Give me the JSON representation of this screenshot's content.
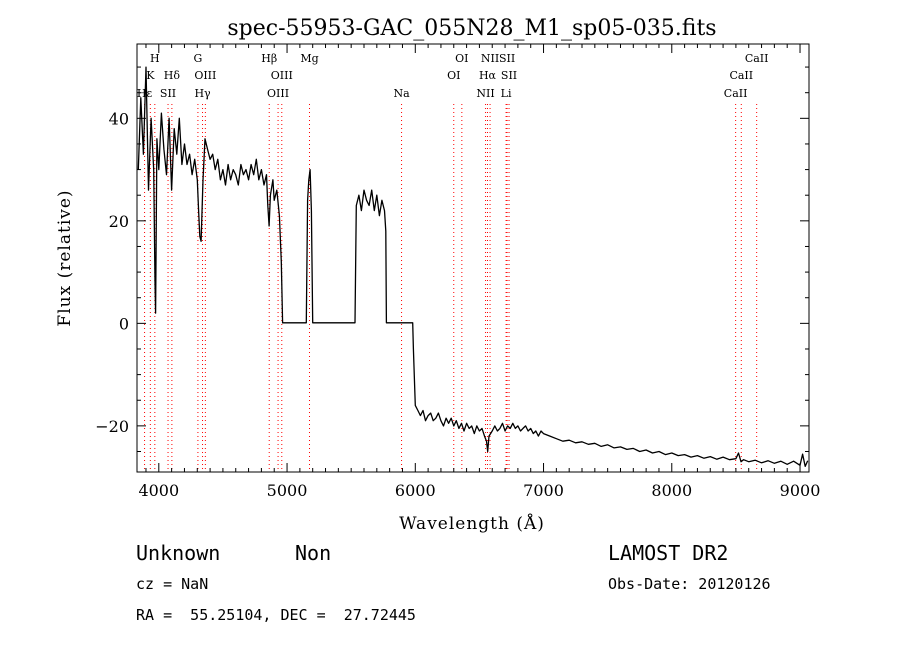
{
  "chart_data": {
    "type": "line",
    "title": "spec-55953-GAC_055N28_M1_sp05-035.fits",
    "xlabel": "Wavelength (Å)",
    "ylabel": "Flux (relative)",
    "xlim": [
      3830,
      9070
    ],
    "ylim": [
      -29,
      54.5
    ],
    "xticks": [
      {
        "value": 4000,
        "label": "4000"
      },
      {
        "value": 5000,
        "label": "5000"
      },
      {
        "value": 6000,
        "label": "6000"
      },
      {
        "value": 7000,
        "label": "7000"
      },
      {
        "value": 8000,
        "label": "8000"
      },
      {
        "value": 9000,
        "label": "9000"
      }
    ],
    "yticks": [
      {
        "value": -20,
        "label": "−20"
      },
      {
        "value": 0,
        "label": "0"
      },
      {
        "value": 20,
        "label": "20"
      },
      {
        "value": 40,
        "label": "40"
      }
    ],
    "line_color": "#000000",
    "marker_color": "#ff0000",
    "markers": [
      {
        "label": "H",
        "x": 3969,
        "row": 0
      },
      {
        "label": "K",
        "x": 3934,
        "row": 1
      },
      {
        "label": "Hε",
        "x": 3889,
        "row": 2
      },
      {
        "label": "Hδ",
        "x": 4102,
        "row": 1
      },
      {
        "label": "SII",
        "x": 4072,
        "row": 2
      },
      {
        "label": "G",
        "x": 4305,
        "row": 0
      },
      {
        "label": "OIII",
        "x": 4363,
        "row": 1
      },
      {
        "label": "Hγ",
        "x": 4341,
        "row": 2
      },
      {
        "label": "Hβ",
        "x": 4861,
        "row": 0
      },
      {
        "label": "OIII",
        "x": 4959,
        "row": 1
      },
      {
        "label": "OIII",
        "x": 4930,
        "row": 2
      },
      {
        "label": "Mg",
        "x": 5175,
        "row": 0
      },
      {
        "label": "Na",
        "x": 5893,
        "row": 2
      },
      {
        "label": "OI",
        "x": 6363,
        "row": 0
      },
      {
        "label": "OI",
        "x": 6300,
        "row": 1
      },
      {
        "label": "NII",
        "x": 6583,
        "row": 0
      },
      {
        "label": "SII",
        "x": 6716,
        "row": 0
      },
      {
        "label": "Hα",
        "x": 6563,
        "row": 1
      },
      {
        "label": "SII",
        "x": 6731,
        "row": 1
      },
      {
        "label": "NII",
        "x": 6548,
        "row": 2
      },
      {
        "label": "Li",
        "x": 6708,
        "row": 2
      },
      {
        "label": "CaII",
        "x": 8662,
        "row": 0
      },
      {
        "label": "CaII",
        "x": 8542,
        "row": 1
      },
      {
        "label": "CaII",
        "x": 8498,
        "row": 2
      }
    ],
    "series": [
      {
        "values": [
          [
            3840,
            30
          ],
          [
            3860,
            44
          ],
          [
            3880,
            33
          ],
          [
            3900,
            50
          ],
          [
            3920,
            26
          ],
          [
            3940,
            40
          ],
          [
            3960,
            30
          ],
          [
            3970,
            8
          ],
          [
            3975,
            2
          ],
          [
            3985,
            36
          ],
          [
            4000,
            30
          ],
          [
            4020,
            41
          ],
          [
            4040,
            34
          ],
          [
            4060,
            29
          ],
          [
            4080,
            40
          ],
          [
            4100,
            26
          ],
          [
            4120,
            38
          ],
          [
            4140,
            33
          ],
          [
            4160,
            40
          ],
          [
            4180,
            31
          ],
          [
            4200,
            35
          ],
          [
            4220,
            31
          ],
          [
            4240,
            33
          ],
          [
            4260,
            29
          ],
          [
            4280,
            32
          ],
          [
            4300,
            28
          ],
          [
            4310,
            22
          ],
          [
            4320,
            17
          ],
          [
            4330,
            16
          ],
          [
            4345,
            28
          ],
          [
            4360,
            36
          ],
          [
            4380,
            34
          ],
          [
            4400,
            32
          ],
          [
            4420,
            33
          ],
          [
            4440,
            30
          ],
          [
            4460,
            32
          ],
          [
            4480,
            28
          ],
          [
            4500,
            30
          ],
          [
            4520,
            27
          ],
          [
            4540,
            31
          ],
          [
            4560,
            28
          ],
          [
            4580,
            30
          ],
          [
            4600,
            29
          ],
          [
            4620,
            27
          ],
          [
            4640,
            31
          ],
          [
            4660,
            29
          ],
          [
            4680,
            30
          ],
          [
            4700,
            28
          ],
          [
            4720,
            31
          ],
          [
            4740,
            29
          ],
          [
            4760,
            32
          ],
          [
            4780,
            28
          ],
          [
            4800,
            30
          ],
          [
            4820,
            27
          ],
          [
            4840,
            29
          ],
          [
            4850,
            23
          ],
          [
            4860,
            19
          ],
          [
            4870,
            25
          ],
          [
            4890,
            28
          ],
          [
            4900,
            24
          ],
          [
            4920,
            26
          ],
          [
            4940,
            21
          ],
          [
            4955,
            12
          ],
          [
            4965,
            0.1
          ],
          [
            5000,
            0.1
          ],
          [
            5050,
            0.1
          ],
          [
            5120,
            0.1
          ],
          [
            5150,
            0.1
          ],
          [
            5160,
            24
          ],
          [
            5170,
            28
          ],
          [
            5180,
            30
          ],
          [
            5190,
            22
          ],
          [
            5200,
            0.1
          ],
          [
            5300,
            0.1
          ],
          [
            5400,
            0.1
          ],
          [
            5500,
            0.1
          ],
          [
            5530,
            0.1
          ],
          [
            5540,
            23
          ],
          [
            5560,
            25
          ],
          [
            5580,
            22
          ],
          [
            5600,
            26
          ],
          [
            5620,
            24
          ],
          [
            5640,
            23
          ],
          [
            5660,
            26
          ],
          [
            5680,
            22
          ],
          [
            5700,
            25
          ],
          [
            5720,
            21
          ],
          [
            5740,
            24
          ],
          [
            5760,
            22
          ],
          [
            5770,
            18
          ],
          [
            5775,
            0.1
          ],
          [
            5800,
            0.1
          ],
          [
            5900,
            0.1
          ],
          [
            5980,
            0.1
          ],
          [
            5985,
            -5
          ],
          [
            5995,
            -12
          ],
          [
            6000,
            -16
          ],
          [
            6020,
            -17
          ],
          [
            6040,
            -18
          ],
          [
            6060,
            -17
          ],
          [
            6080,
            -19
          ],
          [
            6100,
            -18
          ],
          [
            6120,
            -17.5
          ],
          [
            6140,
            -19
          ],
          [
            6160,
            -18.5
          ],
          [
            6180,
            -17.5
          ],
          [
            6200,
            -19
          ],
          [
            6220,
            -20
          ],
          [
            6240,
            -18.5
          ],
          [
            6260,
            -19.5
          ],
          [
            6280,
            -18.5
          ],
          [
            6300,
            -20
          ],
          [
            6320,
            -19
          ],
          [
            6340,
            -20.5
          ],
          [
            6360,
            -19.5
          ],
          [
            6380,
            -21
          ],
          [
            6400,
            -19.5
          ],
          [
            6420,
            -20.5
          ],
          [
            6440,
            -20
          ],
          [
            6460,
            -21.5
          ],
          [
            6480,
            -20
          ],
          [
            6500,
            -21
          ],
          [
            6520,
            -20.5
          ],
          [
            6540,
            -22
          ],
          [
            6555,
            -23
          ],
          [
            6565,
            -25
          ],
          [
            6575,
            -22
          ],
          [
            6600,
            -21
          ],
          [
            6620,
            -20
          ],
          [
            6640,
            -21
          ],
          [
            6660,
            -20.5
          ],
          [
            6680,
            -19.5
          ],
          [
            6700,
            -21
          ],
          [
            6720,
            -20
          ],
          [
            6740,
            -20.5
          ],
          [
            6760,
            -19.5
          ],
          [
            6780,
            -20.5
          ],
          [
            6800,
            -20
          ],
          [
            6820,
            -21
          ],
          [
            6840,
            -20.5
          ],
          [
            6860,
            -20
          ],
          [
            6880,
            -21
          ],
          [
            6900,
            -20.5
          ],
          [
            6920,
            -21.5
          ],
          [
            6940,
            -21
          ],
          [
            6960,
            -22
          ],
          [
            6980,
            -21
          ],
          [
            7000,
            -21.5
          ],
          [
            7050,
            -22
          ],
          [
            7100,
            -22.5
          ],
          [
            7150,
            -23
          ],
          [
            7200,
            -22.8
          ],
          [
            7250,
            -23.3
          ],
          [
            7300,
            -23.1
          ],
          [
            7350,
            -23.6
          ],
          [
            7400,
            -23.4
          ],
          [
            7450,
            -24
          ],
          [
            7500,
            -23.7
          ],
          [
            7550,
            -24.3
          ],
          [
            7600,
            -24.1
          ],
          [
            7650,
            -24.6
          ],
          [
            7700,
            -24.4
          ],
          [
            7750,
            -25
          ],
          [
            7800,
            -24.7
          ],
          [
            7850,
            -25.3
          ],
          [
            7900,
            -25
          ],
          [
            7950,
            -25.6
          ],
          [
            8000,
            -25.3
          ],
          [
            8050,
            -25.8
          ],
          [
            8100,
            -25.6
          ],
          [
            8150,
            -26.1
          ],
          [
            8200,
            -25.8
          ],
          [
            8250,
            -26.3
          ],
          [
            8300,
            -26
          ],
          [
            8350,
            -26.5
          ],
          [
            8400,
            -26.1
          ],
          [
            8450,
            -26.6
          ],
          [
            8500,
            -26.4
          ],
          [
            8520,
            -25.3
          ],
          [
            8540,
            -27
          ],
          [
            8560,
            -26.6
          ],
          [
            8600,
            -27
          ],
          [
            8650,
            -26.7
          ],
          [
            8700,
            -27.2
          ],
          [
            8750,
            -26.8
          ],
          [
            8800,
            -27.3
          ],
          [
            8850,
            -26.9
          ],
          [
            8900,
            -27.5
          ],
          [
            8950,
            -26.9
          ],
          [
            9000,
            -27.7
          ],
          [
            9020,
            -25.5
          ],
          [
            9040,
            -27.9
          ],
          [
            9060,
            -26.8
          ]
        ]
      }
    ]
  },
  "info": {
    "class": "Unknown",
    "subclass": "Non",
    "survey": "LAMOST DR2",
    "cz": "cz = NaN",
    "obs_date": "Obs-Date: 20120126",
    "coords": "RA =  55.25104, DEC =  27.72445"
  }
}
